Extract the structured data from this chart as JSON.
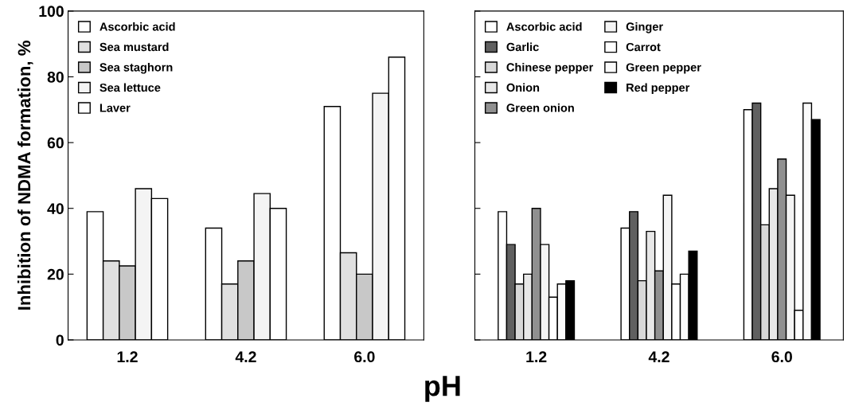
{
  "chart_data": [
    {
      "type": "bar",
      "xlabel": "pH",
      "ylabel": "Inhibition of NDMA formation, %",
      "categories": [
        "1.2",
        "4.2",
        "6.0"
      ],
      "ylim": [
        0,
        100
      ],
      "yticks": [
        0,
        20,
        40,
        60,
        80,
        100
      ],
      "legend": "top left",
      "grid": false,
      "series": [
        {
          "name": "Ascorbic acid",
          "color": "#ffffff",
          "values": [
            39,
            34,
            71
          ]
        },
        {
          "name": "Sea mustard",
          "color": "#e0e0e0",
          "values": [
            24,
            17,
            26.5
          ]
        },
        {
          "name": "Sea staghorn",
          "color": "#c8c8c8",
          "values": [
            22.5,
            24,
            20
          ]
        },
        {
          "name": "Sea lettuce",
          "color": "#f4f4f4",
          "values": [
            46,
            44.5,
            75
          ]
        },
        {
          "name": "Laver",
          "color": "#ffffff",
          "values": [
            43,
            40,
            86
          ]
        }
      ]
    },
    {
      "type": "bar",
      "categories": [
        "1.2",
        "4.2",
        "6.0"
      ],
      "ylim": [
        0,
        100
      ],
      "yticks": [
        0,
        20,
        40,
        60,
        80,
        100
      ],
      "tick_labels": "x",
      "legend": "top left",
      "grid": false,
      "series": [
        {
          "name": "Ascorbic acid",
          "color": "#ffffff",
          "values": [
            39,
            34,
            70
          ]
        },
        {
          "name": "Garlic",
          "color": "#606060",
          "values": [
            29,
            39,
            72
          ]
        },
        {
          "name": "Chinese pepper",
          "color": "#d8d8d8",
          "values": [
            17,
            18,
            35
          ]
        },
        {
          "name": "Onion",
          "color": "#e8e8e8",
          "values": [
            20,
            33,
            46
          ]
        },
        {
          "name": "Green onion",
          "color": "#909090",
          "values": [
            40,
            21,
            55
          ]
        },
        {
          "name": "Ginger",
          "color": "#f4f4f4",
          "values": [
            29,
            44,
            44
          ]
        },
        {
          "name": "Carrot",
          "color": "#ffffff",
          "values": [
            13,
            17,
            9
          ]
        },
        {
          "name": "Green pepper",
          "color": "#fafafa",
          "values": [
            17,
            20,
            72
          ]
        },
        {
          "name": "Red pepper",
          "color": "#000000",
          "values": [
            18,
            27,
            67
          ]
        }
      ]
    }
  ]
}
